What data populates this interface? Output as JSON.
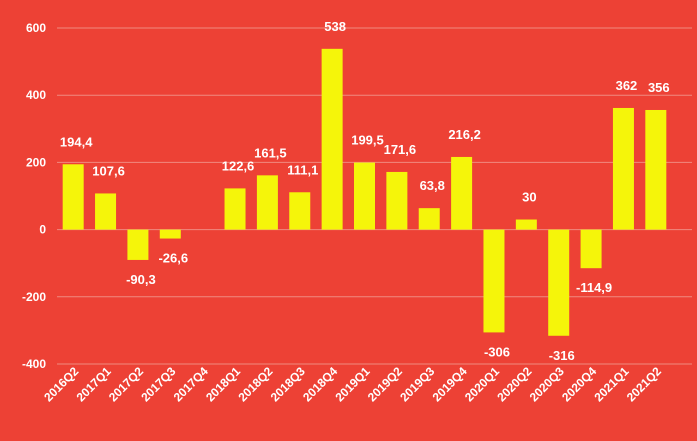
{
  "chart_data": {
    "type": "bar",
    "categories": [
      "2016Q2",
      "2017Q1",
      "2017Q2",
      "2017Q3",
      "2017Q4",
      "2018Q1",
      "2018Q2",
      "2018Q3",
      "2018Q4",
      "2019Q1",
      "2019Q2",
      "2019Q3",
      "2019Q4",
      "2020Q1",
      "2020Q2",
      "2020Q3",
      "2020Q4",
      "2021Q1",
      "2021Q2"
    ],
    "values": [
      194.4,
      107.6,
      -90.3,
      -26.6,
      0,
      122.6,
      161.5,
      111.1,
      538,
      199.5,
      171.6,
      63.8,
      216.2,
      -306,
      30,
      -316,
      -114.9,
      362,
      356
    ],
    "data_labels": [
      "194,4",
      "107,6",
      "-90,3",
      "-26,6",
      "",
      "122,6",
      "161,5",
      "111,1",
      "538",
      "199,5",
      "171,6",
      "63,8",
      "216,2",
      "-306",
      "30",
      "-316",
      "-114,9",
      "362",
      "356"
    ],
    "y_ticks": [
      -400,
      -200,
      0,
      200,
      400,
      600
    ],
    "y_tick_labels": [
      "-400",
      "-200",
      "0",
      "200",
      "400",
      "600"
    ],
    "ylim": [
      -400,
      600
    ],
    "grid": true,
    "colors": {
      "background": "#ED4135",
      "bar": "#F5F50A",
      "grid": "#F08A80",
      "text": "#FFFFFF"
    }
  }
}
